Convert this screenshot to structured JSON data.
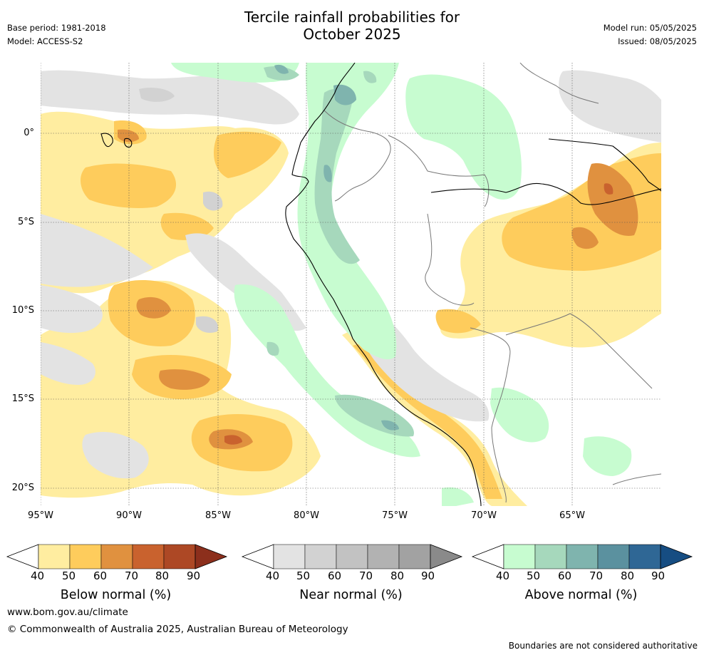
{
  "header": {
    "title_line1": "Tercile rainfall probabilities for",
    "title_line2": "October 2025",
    "base_period": "Base period: 1981-2018",
    "model": "Model: ACCESS-S2",
    "model_run": "Model run: 05/05/2025",
    "issued": "Issued: 08/05/2025"
  },
  "map": {
    "lat_labels": [
      "0°",
      "5°S",
      "10°S",
      "15°S",
      "20°S"
    ],
    "lon_labels": [
      "95°W",
      "90°W",
      "85°W",
      "80°W",
      "75°W",
      "70°W",
      "65°W"
    ],
    "lat_values": [
      0,
      -5,
      -10,
      -15,
      -20
    ],
    "lon_values": [
      -95,
      -90,
      -85,
      -80,
      -75,
      -70,
      -65
    ],
    "extent": {
      "lon_min": -95,
      "lon_max": -60,
      "lat_min": -21,
      "lat_max": 4
    }
  },
  "colorbars": [
    {
      "title": "Below normal (%)",
      "ticks": [
        "40",
        "50",
        "60",
        "70",
        "80",
        "90"
      ],
      "colors": [
        "#ffeda0",
        "#fecc5c",
        "#e0913f",
        "#c9622e",
        "#ad4825",
        "#8c2f1c"
      ]
    },
    {
      "title": "Near normal (%)",
      "ticks": [
        "40",
        "50",
        "60",
        "70",
        "80",
        "90"
      ],
      "colors": [
        "#e3e3e3",
        "#d2d2d2",
        "#c2c2c2",
        "#b2b2b2",
        "#a2a2a2",
        "#8a8a8a"
      ]
    },
    {
      "title": "Above normal (%)",
      "ticks": [
        "40",
        "50",
        "60",
        "70",
        "80",
        "90"
      ],
      "colors": [
        "#c7fcd0",
        "#a6d8bc",
        "#7fb4ae",
        "#5b919f",
        "#2f6795",
        "#164d82"
      ]
    }
  ],
  "footer": {
    "url": "www.bom.gov.au/climate",
    "copyright": "© Commonwealth of Australia 2025, Australian Bureau of Meteorology",
    "disclaimer": "Boundaries are not considered authoritative"
  }
}
